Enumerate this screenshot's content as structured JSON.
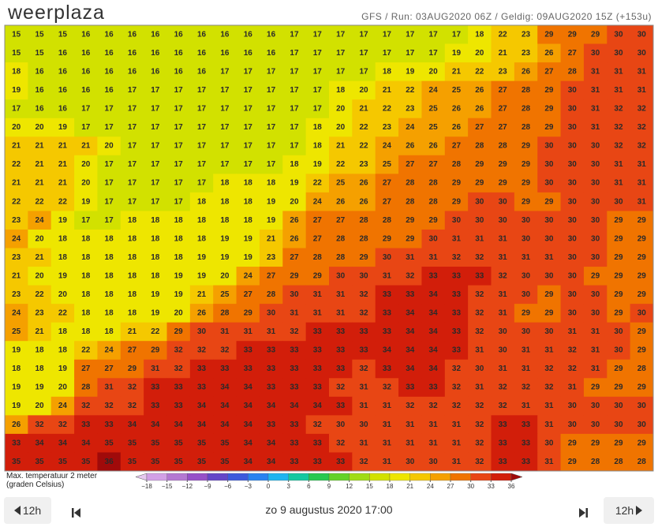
{
  "header": {
    "logo": "weerplaza",
    "run_info": "GFS / Run: 03AUG2020 06Z / Geldig: 09AUG2020 15Z (+153u)"
  },
  "map": {
    "rows": [
      [
        15,
        15,
        15,
        16,
        16,
        16,
        16,
        16,
        16,
        16,
        16,
        16,
        17,
        17,
        17,
        17,
        17,
        17,
        17,
        17,
        18,
        22,
        23,
        29,
        29,
        29,
        30,
        30
      ],
      [
        15,
        15,
        16,
        16,
        16,
        16,
        16,
        16,
        16,
        16,
        16,
        16,
        17,
        17,
        17,
        17,
        17,
        17,
        17,
        19,
        20,
        21,
        23,
        26,
        27,
        30,
        30,
        30
      ],
      [
        18,
        16,
        16,
        16,
        16,
        16,
        16,
        16,
        16,
        17,
        17,
        17,
        17,
        17,
        17,
        17,
        18,
        19,
        20,
        21,
        22,
        23,
        26,
        27,
        28,
        31,
        31,
        31
      ],
      [
        19,
        16,
        16,
        16,
        16,
        17,
        17,
        17,
        17,
        17,
        17,
        17,
        17,
        17,
        18,
        20,
        21,
        22,
        24,
        25,
        26,
        27,
        28,
        29,
        30,
        31,
        31,
        31
      ],
      [
        17,
        16,
        16,
        17,
        17,
        17,
        17,
        17,
        17,
        17,
        17,
        17,
        17,
        17,
        20,
        21,
        22,
        23,
        25,
        26,
        26,
        27,
        28,
        29,
        30,
        31,
        32,
        32
      ],
      [
        20,
        20,
        19,
        17,
        17,
        17,
        17,
        17,
        17,
        17,
        17,
        17,
        17,
        18,
        20,
        22,
        23,
        24,
        25,
        26,
        27,
        27,
        28,
        29,
        30,
        31,
        32,
        32
      ],
      [
        21,
        21,
        21,
        21,
        20,
        17,
        17,
        17,
        17,
        17,
        17,
        17,
        17,
        18,
        21,
        22,
        24,
        26,
        26,
        27,
        28,
        28,
        29,
        30,
        30,
        30,
        32,
        32
      ],
      [
        22,
        21,
        21,
        20,
        17,
        17,
        17,
        17,
        17,
        17,
        17,
        17,
        18,
        19,
        22,
        23,
        25,
        27,
        27,
        28,
        29,
        29,
        29,
        30,
        30,
        30,
        31,
        31
      ],
      [
        21,
        21,
        21,
        20,
        17,
        17,
        17,
        17,
        17,
        18,
        18,
        18,
        19,
        22,
        25,
        26,
        27,
        28,
        28,
        29,
        29,
        29,
        29,
        30,
        30,
        30,
        31,
        31
      ],
      [
        22,
        22,
        22,
        19,
        17,
        17,
        17,
        17,
        18,
        18,
        18,
        19,
        20,
        24,
        26,
        26,
        27,
        28,
        28,
        29,
        30,
        30,
        29,
        29,
        30,
        30,
        30,
        31
      ],
      [
        23,
        24,
        19,
        17,
        17,
        18,
        18,
        18,
        18,
        18,
        18,
        19,
        26,
        27,
        27,
        28,
        28,
        29,
        29,
        30,
        30,
        30,
        30,
        30,
        30,
        30,
        29,
        29
      ],
      [
        24,
        20,
        18,
        18,
        18,
        18,
        18,
        18,
        18,
        19,
        19,
        21,
        26,
        27,
        28,
        28,
        29,
        29,
        30,
        31,
        31,
        31,
        30,
        30,
        30,
        30,
        29,
        29
      ],
      [
        23,
        21,
        18,
        18,
        18,
        18,
        18,
        18,
        19,
        19,
        19,
        23,
        27,
        28,
        28,
        29,
        30,
        31,
        31,
        32,
        32,
        31,
        31,
        31,
        30,
        30,
        29,
        29
      ],
      [
        21,
        20,
        19,
        18,
        18,
        18,
        18,
        19,
        19,
        20,
        24,
        27,
        29,
        29,
        30,
        30,
        31,
        32,
        33,
        33,
        33,
        32,
        30,
        30,
        30,
        29,
        29,
        29
      ],
      [
        23,
        22,
        20,
        18,
        18,
        18,
        19,
        19,
        21,
        25,
        27,
        28,
        30,
        31,
        31,
        32,
        33,
        33,
        34,
        33,
        32,
        31,
        30,
        29,
        30,
        30,
        29,
        29
      ],
      [
        24,
        23,
        22,
        18,
        18,
        18,
        19,
        20,
        26,
        28,
        29,
        30,
        31,
        31,
        31,
        32,
        33,
        34,
        34,
        33,
        32,
        31,
        29,
        29,
        30,
        30,
        29,
        30
      ],
      [
        25,
        21,
        18,
        18,
        18,
        21,
        22,
        29,
        30,
        31,
        31,
        31,
        32,
        33,
        33,
        33,
        33,
        34,
        34,
        33,
        32,
        30,
        30,
        30,
        31,
        31,
        30,
        29
      ],
      [
        19,
        18,
        18,
        22,
        24,
        27,
        29,
        32,
        32,
        32,
        33,
        33,
        33,
        33,
        33,
        33,
        34,
        34,
        34,
        33,
        31,
        30,
        31,
        31,
        32,
        31,
        30,
        29
      ],
      [
        18,
        18,
        19,
        27,
        27,
        29,
        31,
        32,
        33,
        33,
        33,
        33,
        33,
        33,
        33,
        32,
        33,
        34,
        34,
        32,
        30,
        31,
        31,
        32,
        32,
        31,
        29,
        28
      ],
      [
        19,
        19,
        20,
        28,
        31,
        32,
        33,
        33,
        33,
        34,
        34,
        33,
        33,
        33,
        32,
        31,
        32,
        33,
        33,
        32,
        31,
        32,
        32,
        32,
        31,
        29,
        29,
        29
      ],
      [
        19,
        20,
        24,
        32,
        32,
        32,
        33,
        33,
        34,
        34,
        34,
        34,
        34,
        34,
        33,
        31,
        31,
        32,
        32,
        32,
        32,
        32,
        31,
        31,
        30,
        30,
        30,
        30
      ],
      [
        26,
        32,
        32,
        33,
        33,
        34,
        34,
        34,
        34,
        34,
        34,
        33,
        33,
        32,
        30,
        30,
        31,
        31,
        31,
        31,
        32,
        33,
        33,
        31,
        30,
        30,
        30,
        30
      ],
      [
        33,
        34,
        34,
        34,
        35,
        35,
        35,
        35,
        35,
        35,
        34,
        34,
        33,
        33,
        32,
        31,
        31,
        31,
        31,
        31,
        32,
        33,
        33,
        30,
        29,
        29,
        29,
        29
      ],
      [
        35,
        35,
        35,
        35,
        36,
        35,
        35,
        35,
        35,
        35,
        34,
        34,
        33,
        33,
        33,
        32,
        31,
        30,
        30,
        31,
        32,
        33,
        33,
        31,
        29,
        28,
        28,
        28
      ]
    ]
  },
  "legend": {
    "title": "Max. temperatuur 2 meter",
    "unit": "(graden Celsius)",
    "ticks": [
      {
        "value": -18,
        "label": "−18"
      },
      {
        "value": -15,
        "label": "−15"
      },
      {
        "value": -12,
        "label": "−12"
      },
      {
        "value": -9,
        "label": "−9"
      },
      {
        "value": -6,
        "label": "−6"
      },
      {
        "value": -3,
        "label": "−3"
      },
      0,
      3,
      6,
      9,
      12,
      15,
      18,
      21,
      24,
      27,
      30,
      33,
      36
    ],
    "colors": [
      "#e6c8f0",
      "#d2a0e6",
      "#b478d2",
      "#9650c8",
      "#6446c8",
      "#3c5adc",
      "#2882f0",
      "#1eb4f0",
      "#14c8a0",
      "#28c850",
      "#64d228",
      "#a0dc14",
      "#d2e100",
      "#eee600",
      "#f5c800",
      "#f5a000",
      "#f07400",
      "#e84614",
      "#d21e0a",
      "#a00a0a"
    ]
  },
  "nav": {
    "prev": "12h",
    "date": "zo 9 augustus 2020 17:00",
    "next": "12h"
  }
}
